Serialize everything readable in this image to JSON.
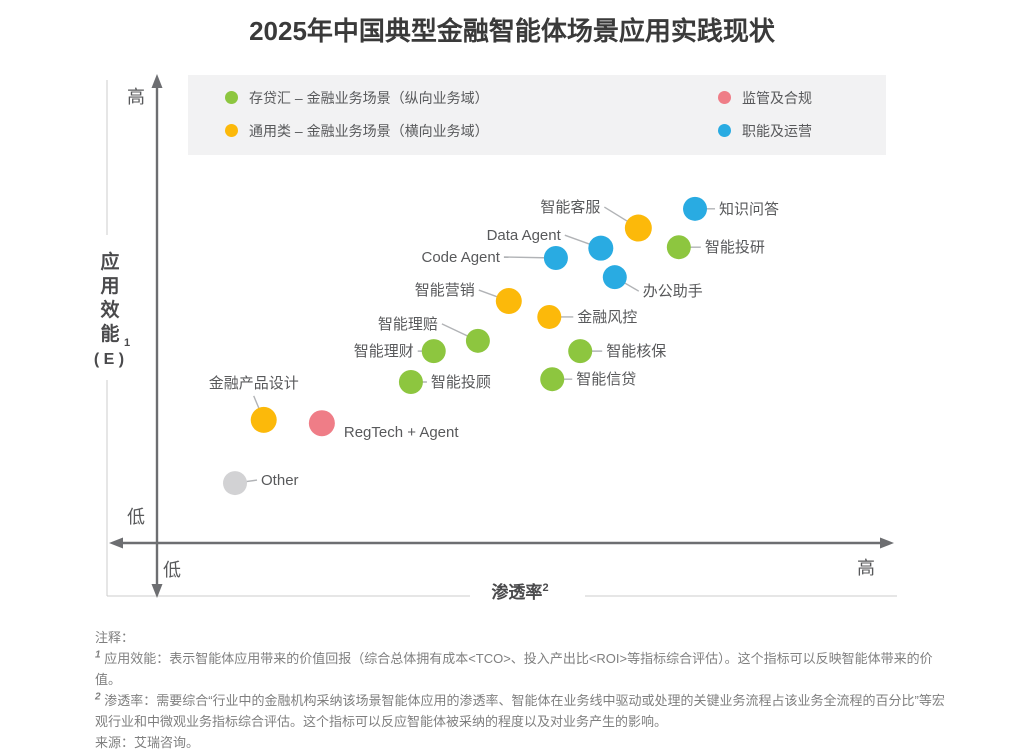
{
  "chart_data": {
    "type": "scatter",
    "title": "2025年中国典型金融智能体场景应用实践现状",
    "xlabel": "渗透率",
    "xlabel_sup": "2",
    "ylabel": "应用效能",
    "ylabel_sub": "1",
    "ylabel_paren": "( E )",
    "x_axis": {
      "low": "低",
      "high": "高",
      "range_note": "qualitative 0-100"
    },
    "y_axis": {
      "low": "低",
      "high": "高",
      "range_note": "qualitative 0-100"
    },
    "grid": false,
    "legend_position": "top",
    "other_color": "#d2d2d4",
    "categories": [
      {
        "key": "deposit",
        "label": "存贷汇 – 金融业务场景（纵向业务域）",
        "color": "#8dc63f"
      },
      {
        "key": "regulation",
        "label": "监管及合规",
        "color": "#ef7d87"
      },
      {
        "key": "general",
        "label": "通用类 – 金融业务场景（横向业务域）",
        "color": "#fcb90a"
      },
      {
        "key": "operations",
        "label": "职能及运营",
        "color": "#29abe2"
      }
    ],
    "points": [
      {
        "label": "智能客服",
        "cat": "general",
        "x": 65.4,
        "y": 67.3,
        "r": 13.5,
        "anchor": "end",
        "lp": [
          -34,
          -21
        ],
        "line": true
      },
      {
        "label": "知识问答",
        "cat": "operations",
        "x": 73.1,
        "y": 71.4,
        "r": 12,
        "anchor": "start",
        "lp": [
          20,
          0
        ],
        "line": true
      },
      {
        "label": "智能投研",
        "cat": "deposit",
        "x": 70.9,
        "y": 63.2,
        "r": 12,
        "anchor": "start",
        "lp": [
          22,
          0
        ],
        "line": true
      },
      {
        "label": "Data Agent",
        "cat": "operations",
        "x": 60.3,
        "y": 63.0,
        "r": 12.5,
        "anchor": "end",
        "lp": [
          -36,
          -13
        ],
        "line": true
      },
      {
        "label": "Code Agent",
        "cat": "operations",
        "x": 54.2,
        "y": 60.9,
        "r": 12,
        "anchor": "end",
        "lp": [
          -52,
          -1
        ],
        "line": true
      },
      {
        "label": "办公助手",
        "cat": "operations",
        "x": 62.2,
        "y": 56.8,
        "r": 12,
        "anchor": "start",
        "lp": [
          24,
          14
        ],
        "line": true
      },
      {
        "label": "智能营销",
        "cat": "general",
        "x": 47.8,
        "y": 51.7,
        "r": 13,
        "anchor": "end",
        "lp": [
          -30,
          -11
        ],
        "line": true
      },
      {
        "label": "金融风控",
        "cat": "general",
        "x": 53.3,
        "y": 48.3,
        "r": 12,
        "anchor": "start",
        "lp": [
          24,
          0
        ],
        "line": true
      },
      {
        "label": "智能理赔",
        "cat": "deposit",
        "x": 43.6,
        "y": 43.2,
        "r": 12,
        "anchor": "end",
        "lp": [
          -36,
          -17
        ],
        "line": true
      },
      {
        "label": "智能理财",
        "cat": "deposit",
        "x": 37.6,
        "y": 41.0,
        "r": 12,
        "anchor": "end",
        "lp": [
          -16,
          0
        ],
        "line": true
      },
      {
        "label": "智能核保",
        "cat": "deposit",
        "x": 57.5,
        "y": 41.0,
        "r": 12,
        "anchor": "start",
        "lp": [
          22,
          0
        ],
        "line": true
      },
      {
        "label": "智能投顾",
        "cat": "deposit",
        "x": 34.5,
        "y": 34.4,
        "r": 12,
        "anchor": "start",
        "lp": [
          16,
          0
        ],
        "line": true
      },
      {
        "label": "智能信贷",
        "cat": "deposit",
        "x": 53.7,
        "y": 35.0,
        "r": 12,
        "anchor": "start",
        "lp": [
          20,
          0
        ],
        "line": true
      },
      {
        "label": "金融产品设计",
        "cat": "general",
        "x": 14.5,
        "y": 26.3,
        "r": 13,
        "anchor": "middle",
        "lp": [
          -10,
          -24
        ],
        "line": true
      },
      {
        "label": "RegTech + Agent",
        "cat": "regulation",
        "x": 22.4,
        "y": 25.6,
        "r": 13,
        "anchor": "start",
        "lp": [
          18,
          9
        ],
        "line": false
      },
      {
        "label": "Other",
        "cat": "other",
        "x": 10.6,
        "y": 12.8,
        "r": 12,
        "anchor": "start",
        "lp": [
          22,
          -3
        ],
        "line": true
      }
    ]
  },
  "notes": {
    "header": "注释：",
    "items": [
      {
        "sup": "1",
        "text": "应用效能：表示智能体应用带来的价值回报（综合总体拥有成本<TCO>、投入产出比<ROI>等指标综合评估）。这个指标可以反映智能体带来的价值。"
      },
      {
        "sup": "2",
        "text": "渗透率：需要综合“行业中的金融机构采纳该场景智能体应用的渗透率、智能体在业务线中驱动或处理的关键业务流程占该业务全流程的百分比”等宏观行业和中微观业务指标综合评估。这个指标可以反应智能体被采纳的程度以及对业务产生的影响。"
      }
    ],
    "source": "来源：艾瑞咨询。"
  }
}
